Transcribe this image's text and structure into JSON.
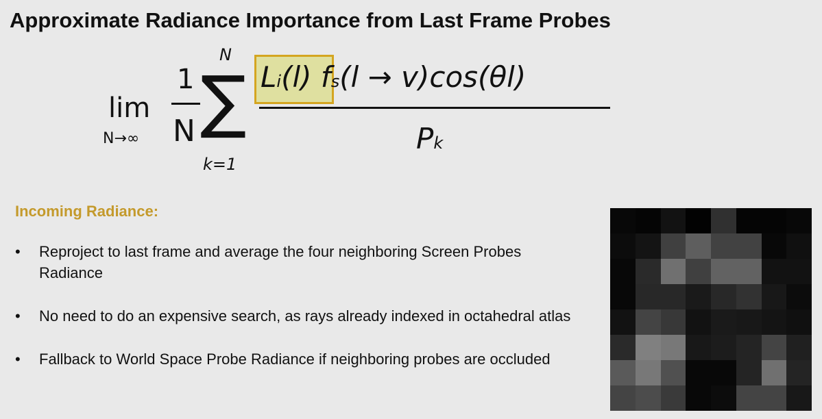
{
  "title": "Approximate Radiance Importance from Last Frame Probes",
  "formula": {
    "lim": "lim",
    "lim_sub": "N→∞",
    "one": "1",
    "N": "N",
    "sigma": "∑",
    "sum_top": "N",
    "sum_bottom": "k=1",
    "Li": "L",
    "Li_sub": "i",
    "Li_arg": "(l)",
    "rest": "f",
    "fs_sub": "s",
    "rest2": "(l → v)cos(θl)",
    "P": "P",
    "P_sub": "k"
  },
  "section": {
    "heading": "Incoming Radiance:",
    "bullets": [
      "Reproject to last frame and average the four neighboring Screen Probes Radiance",
      "No need to do an expensive search, as rays already indexed in octahedral atlas",
      "Fallback to World Space Probe Radiance if neighboring probes are occluded"
    ]
  },
  "colors": {
    "heading": "#c49a2c",
    "highlight_border": "#d4a520"
  },
  "probe_image_gray": [
    [
      "08",
      "05",
      "12",
      "02",
      "30",
      "05",
      "05",
      "08"
    ],
    [
      "0c",
      "14",
      "40",
      "5e",
      "42",
      "42",
      "08",
      "10"
    ],
    [
      "08",
      "2a",
      "70",
      "40",
      "62",
      "62",
      "12",
      "12"
    ],
    [
      "08",
      "28",
      "28",
      "1a",
      "28",
      "32",
      "18",
      "0c"
    ],
    [
      "12",
      "44",
      "38",
      "12",
      "1a",
      "18",
      "14",
      "10"
    ],
    [
      "2a",
      "80",
      "78",
      "18",
      "1c",
      "24",
      "44",
      "20"
    ],
    [
      "5a",
      "78",
      "50",
      "08",
      "08",
      "24",
      "70",
      "24"
    ],
    [
      "44",
      "4c",
      "3a",
      "08",
      "0c",
      "44",
      "44",
      "18"
    ]
  ]
}
